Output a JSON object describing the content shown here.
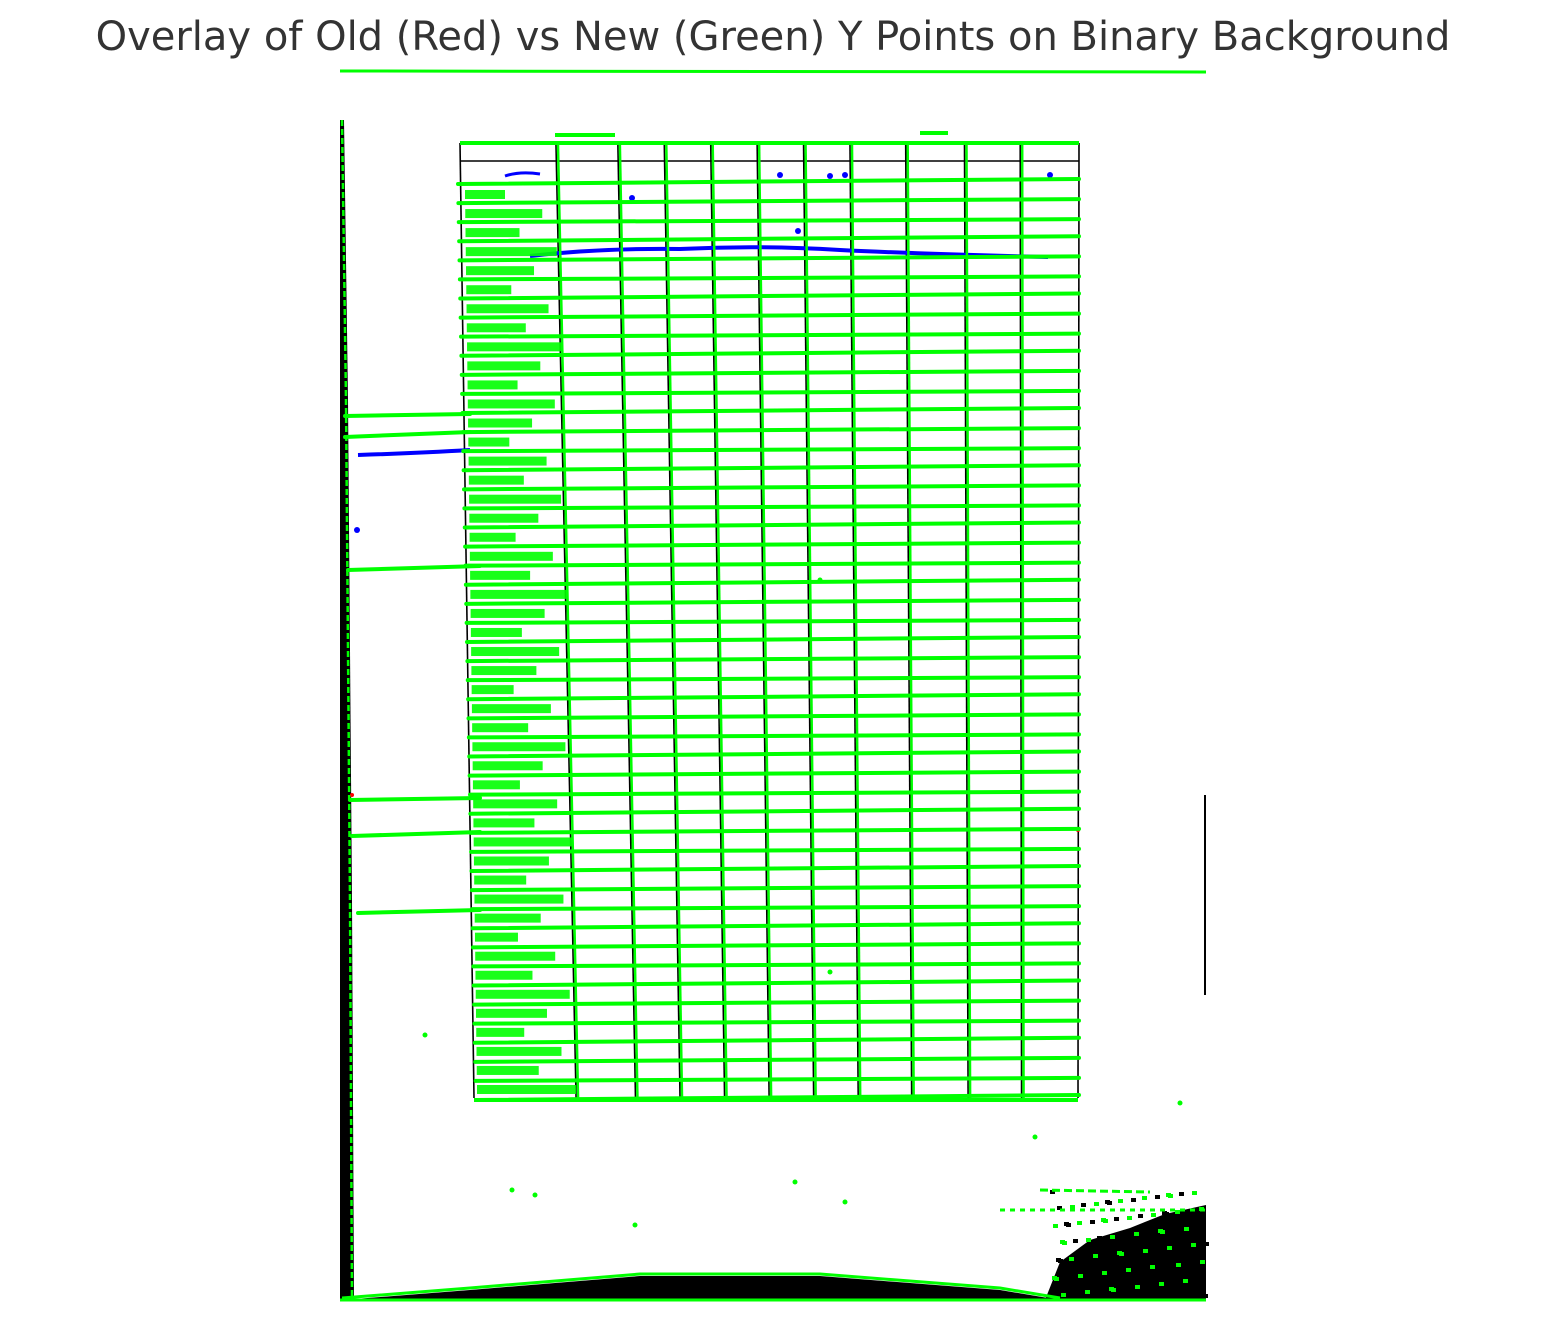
{
  "chart_data": {
    "type": "scatter",
    "title": "Overlay of Old (Red) vs New (Green) Y Points on Binary Background",
    "xlabel": "",
    "ylabel": "",
    "axes_visible": false,
    "grid": false,
    "legend": "none",
    "background": "binary scanned table image (black ink on white)",
    "colors": {
      "old_points": "#ff0000",
      "new_points": "#00ff00",
      "contour": "#0000ff",
      "ink": "#000000",
      "background": "#ffffff"
    },
    "table_rows": 49,
    "table_columns": 11,
    "series": [
      {
        "name": "Old",
        "color": "#ff0000",
        "note": "almost fully covered by the New series"
      },
      {
        "name": "New",
        "color": "#00ff00",
        "note": "row boundary points drawn across each table row"
      }
    ]
  }
}
